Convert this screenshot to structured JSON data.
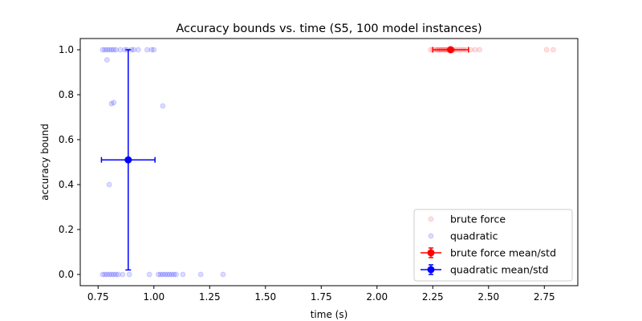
{
  "chart_data": {
    "type": "scatter",
    "title": "Accuracy bounds vs. time (S5, 100 model instances)",
    "xlabel": "time (s)",
    "ylabel": "accuracy bound",
    "xlim": [
      0.67,
      2.9
    ],
    "ylim": [
      -0.05,
      1.05
    ],
    "x_ticks": [
      0.75,
      1.0,
      1.25,
      1.5,
      1.75,
      2.0,
      2.25,
      2.5,
      2.75
    ],
    "x_tick_labels": [
      "0.75",
      "1.00",
      "1.25",
      "1.50",
      "1.75",
      "2.00",
      "2.25",
      "2.50",
      "2.75"
    ],
    "y_ticks": [
      0.0,
      0.2,
      0.4,
      0.6,
      0.8,
      1.0
    ],
    "y_tick_labels": [
      "0.0",
      "0.2",
      "0.4",
      "0.6",
      "0.8",
      "1.0"
    ],
    "grid": false,
    "legend_position": "lower-right",
    "series": [
      {
        "name": "brute force",
        "kind": "points",
        "color": "#ff0000",
        "alpha": 0.12,
        "points": [
          [
            2.24,
            1.0
          ],
          [
            2.25,
            1.0
          ],
          [
            2.26,
            1.0
          ],
          [
            2.27,
            1.0
          ],
          [
            2.27,
            1.0
          ],
          [
            2.28,
            1.0
          ],
          [
            2.28,
            1.0
          ],
          [
            2.29,
            1.0
          ],
          [
            2.29,
            1.0
          ],
          [
            2.3,
            1.0
          ],
          [
            2.3,
            1.0
          ],
          [
            2.31,
            1.0
          ],
          [
            2.31,
            1.0
          ],
          [
            2.32,
            1.0
          ],
          [
            2.32,
            1.0
          ],
          [
            2.33,
            1.0
          ],
          [
            2.33,
            1.0
          ],
          [
            2.34,
            1.0
          ],
          [
            2.34,
            1.0
          ],
          [
            2.35,
            1.0
          ],
          [
            2.36,
            1.0
          ],
          [
            2.37,
            1.0
          ],
          [
            2.38,
            1.0
          ],
          [
            2.39,
            1.0
          ],
          [
            2.4,
            1.0
          ],
          [
            2.42,
            1.0
          ],
          [
            2.44,
            1.0
          ],
          [
            2.46,
            1.0
          ],
          [
            2.76,
            1.0
          ],
          [
            2.79,
            1.0
          ]
        ]
      },
      {
        "name": "quadratic",
        "kind": "points",
        "color": "#0000ff",
        "alpha": 0.14,
        "points": [
          [
            0.77,
            1.0
          ],
          [
            0.78,
            1.0
          ],
          [
            0.79,
            1.0
          ],
          [
            0.8,
            1.0
          ],
          [
            0.81,
            1.0
          ],
          [
            0.82,
            1.0
          ],
          [
            0.83,
            1.0
          ],
          [
            0.85,
            1.0
          ],
          [
            0.87,
            1.0
          ],
          [
            0.88,
            1.0
          ],
          [
            0.9,
            1.0
          ],
          [
            0.91,
            1.0
          ],
          [
            0.93,
            1.0
          ],
          [
            0.97,
            1.0
          ],
          [
            0.99,
            1.0
          ],
          [
            1.0,
            1.0
          ],
          [
            0.79,
            0.955
          ],
          [
            0.81,
            0.76
          ],
          [
            0.82,
            0.765
          ],
          [
            1.04,
            0.75
          ],
          [
            0.8,
            0.4
          ],
          [
            0.77,
            0.0
          ],
          [
            0.78,
            0.0
          ],
          [
            0.79,
            0.0
          ],
          [
            0.8,
            0.0
          ],
          [
            0.81,
            0.0
          ],
          [
            0.82,
            0.0
          ],
          [
            0.83,
            0.0
          ],
          [
            0.84,
            0.0
          ],
          [
            0.86,
            0.0
          ],
          [
            0.89,
            0.0
          ],
          [
            0.98,
            0.0
          ],
          [
            1.02,
            0.0
          ],
          [
            1.03,
            0.0
          ],
          [
            1.04,
            0.0
          ],
          [
            1.05,
            0.0
          ],
          [
            1.06,
            0.0
          ],
          [
            1.07,
            0.0
          ],
          [
            1.08,
            0.0
          ],
          [
            1.09,
            0.0
          ],
          [
            1.1,
            0.0
          ],
          [
            1.13,
            0.0
          ],
          [
            1.21,
            0.0
          ],
          [
            1.31,
            0.0
          ]
        ]
      },
      {
        "name": "brute force mean/std",
        "kind": "errorbar",
        "color": "#ff0000",
        "x": 2.33,
        "y": 1.0,
        "x_err": 0.08,
        "y_err": 0.0
      },
      {
        "name": "quadratic mean/std",
        "kind": "errorbar",
        "color": "#0000ff",
        "x": 0.885,
        "y": 0.51,
        "x_err": 0.12,
        "y_err": 0.49
      }
    ]
  }
}
